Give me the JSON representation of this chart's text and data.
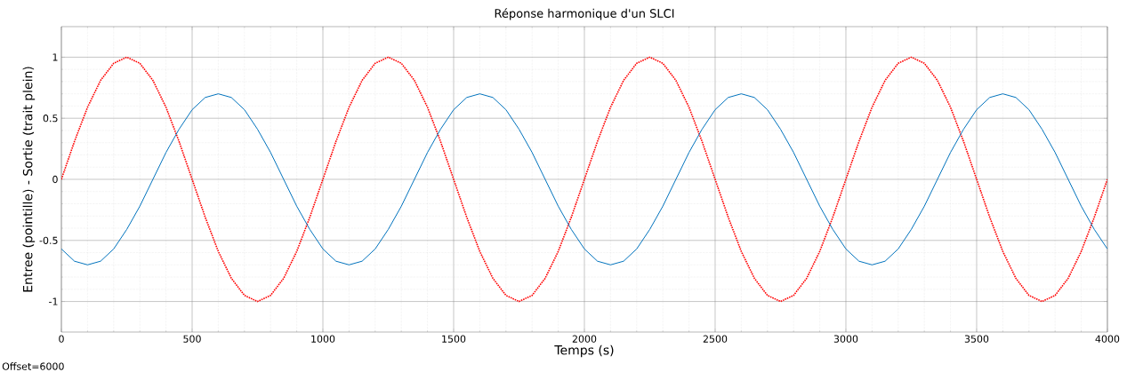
{
  "chart_data": {
    "type": "line",
    "title": "Réponse harmonique d'un SLCI",
    "xlabel": "Temps (s)",
    "ylabel": "Entree (pointille) - Sortie (trait plein)",
    "annotations": [
      "Offset=6000"
    ],
    "x": [
      0,
      50,
      100,
      150,
      200,
      250,
      300,
      350,
      400,
      450,
      500,
      550,
      600,
      650,
      700,
      750,
      800,
      850,
      900,
      950,
      1000,
      1050,
      1100,
      1150,
      1200,
      1250,
      1300,
      1350,
      1400,
      1450,
      1500,
      1550,
      1600,
      1650,
      1700,
      1750,
      1800,
      1850,
      1900,
      1950,
      2000,
      2050,
      2100,
      2150,
      2200,
      2250,
      2300,
      2350,
      2400,
      2450,
      2500,
      2550,
      2600,
      2650,
      2700,
      2750,
      2800,
      2850,
      2900,
      2950,
      3000,
      3050,
      3100,
      3150,
      3200,
      3250,
      3300,
      3350,
      3400,
      3450,
      3500,
      3550,
      3600,
      3650,
      3700,
      3750,
      3800,
      3850,
      3900,
      3950,
      4000
    ],
    "series": [
      {
        "color": "#ff0000",
        "line_style": "dotted",
        "values": [
          0,
          0.31,
          0.59,
          0.81,
          0.95,
          1,
          0.95,
          0.81,
          0.59,
          0.31,
          0,
          -0.31,
          -0.59,
          -0.81,
          -0.95,
          -1,
          -0.95,
          -0.81,
          -0.59,
          -0.31,
          0,
          0.31,
          0.59,
          0.81,
          0.95,
          1,
          0.95,
          0.81,
          0.59,
          0.31,
          0,
          -0.31,
          -0.59,
          -0.81,
          -0.95,
          -1,
          -0.95,
          -0.81,
          -0.59,
          -0.31,
          0,
          0.31,
          0.59,
          0.81,
          0.95,
          1,
          0.95,
          0.81,
          0.59,
          0.31,
          0,
          -0.31,
          -0.59,
          -0.81,
          -0.95,
          -1,
          -0.95,
          -0.81,
          -0.59,
          -0.31,
          0,
          0.31,
          0.59,
          0.81,
          0.95,
          1,
          0.95,
          0.81,
          0.59,
          0.31,
          0,
          -0.31,
          -0.59,
          -0.81,
          -0.95,
          -1,
          -0.95,
          -0.81,
          -0.59,
          -0.31,
          0
        ]
      },
      {
        "color": "#0072bd",
        "line_style": "solid",
        "values": [
          -0.57,
          -0.67,
          -0.7,
          -0.67,
          -0.57,
          -0.41,
          -0.22,
          0,
          0.22,
          0.41,
          0.57,
          0.67,
          0.7,
          0.67,
          0.57,
          0.41,
          0.22,
          0,
          -0.22,
          -0.41,
          -0.57,
          -0.67,
          -0.7,
          -0.67,
          -0.57,
          -0.41,
          -0.22,
          0,
          0.22,
          0.41,
          0.57,
          0.67,
          0.7,
          0.67,
          0.57,
          0.41,
          0.22,
          0,
          -0.22,
          -0.41,
          -0.57,
          -0.67,
          -0.7,
          -0.67,
          -0.57,
          -0.41,
          -0.22,
          0,
          0.22,
          0.41,
          0.57,
          0.67,
          0.7,
          0.67,
          0.57,
          0.41,
          0.22,
          0,
          -0.22,
          -0.41,
          -0.57,
          -0.67,
          -0.7,
          -0.67,
          -0.57,
          -0.41,
          -0.22,
          0,
          0.22,
          0.41,
          0.57,
          0.67,
          0.7,
          0.67,
          0.57,
          0.41,
          0.22,
          0,
          -0.22,
          -0.41,
          -0.57
        ]
      }
    ],
    "xlim": [
      0,
      4000
    ],
    "ylim": [
      -1.25,
      1.25
    ],
    "xticks": [
      0,
      500,
      1000,
      1500,
      2000,
      2500,
      3000,
      3500,
      4000
    ],
    "yticks": [
      -1,
      -0.5,
      0,
      0.5,
      1
    ],
    "grid": true,
    "marker": "none"
  }
}
